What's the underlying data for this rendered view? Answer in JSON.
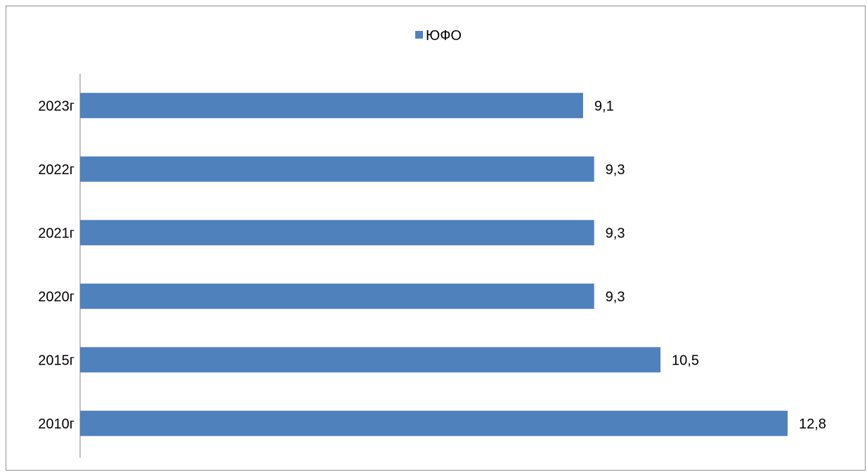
{
  "chart_data": {
    "type": "bar",
    "orientation": "horizontal",
    "categories": [
      "2023г",
      "2022г",
      "2021г",
      "2020г",
      "2015г",
      "2010г"
    ],
    "series": [
      {
        "name": "ЮФО",
        "color": "#4f81bd",
        "values": [
          9.1,
          9.3,
          9.3,
          9.3,
          10.5,
          12.8
        ],
        "labels": [
          "9,1",
          "9,3",
          "9,3",
          "9,3",
          "10,5",
          "12,8"
        ]
      }
    ],
    "xlim": [
      0,
      12.8
    ],
    "grid": false,
    "legend": "top-center",
    "title": "",
    "xlabel": "",
    "ylabel": ""
  }
}
